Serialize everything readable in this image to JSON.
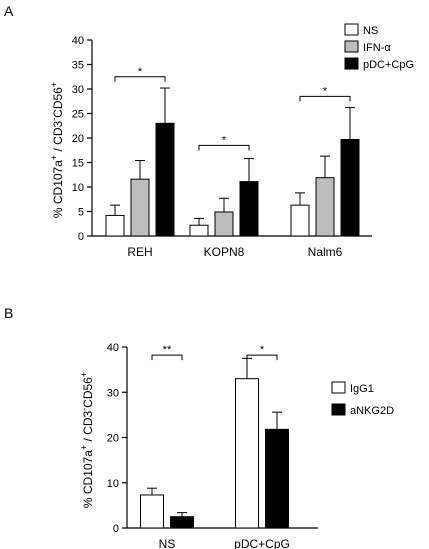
{
  "chart_data": [
    {
      "panel_label": "A",
      "type": "bar",
      "ylabel_main": "% CD107a",
      "ylabel_sup1": "+",
      "ylabel_mid": " / CD3",
      "ylabel_sup2": "-",
      "ylabel_end": "CD56",
      "ylabel_sup3": "+",
      "categories": [
        "REH",
        "KOPN8",
        "Nalm6"
      ],
      "ylim": [
        0,
        40
      ],
      "yticks": [
        0,
        5,
        10,
        15,
        20,
        25,
        30,
        35,
        40
      ],
      "legend_position": "top-right",
      "series": [
        {
          "name": "NS",
          "color": "#ffffff",
          "values": [
            4.2,
            2.2,
            6.3
          ],
          "errors": [
            2.1,
            1.4,
            2.5
          ]
        },
        {
          "name": "IFN-α",
          "color": "#bdbdbd",
          "values": [
            11.6,
            4.9,
            11.9
          ],
          "errors": [
            3.8,
            2.8,
            4.4
          ]
        },
        {
          "name": "pDC+CpG",
          "color": "#000000",
          "values": [
            23.0,
            11.1,
            19.7
          ],
          "errors": [
            7.2,
            4.7,
            6.5
          ]
        }
      ],
      "significance": [
        {
          "category": 0,
          "label": "*",
          "y": 32.5
        },
        {
          "category": 1,
          "label": "*",
          "y": 18.5
        },
        {
          "category": 2,
          "label": "*",
          "y": 28.5
        }
      ]
    },
    {
      "panel_label": "B",
      "type": "bar",
      "ylabel_main": "% CD107a",
      "ylabel_sup1": "+",
      "ylabel_mid": " / CD3",
      "ylabel_sup2": "-",
      "ylabel_end": "CD56",
      "ylabel_sup3": "+",
      "categories": [
        "NS",
        "pDC+CpG"
      ],
      "ylim": [
        0,
        40
      ],
      "yticks": [
        0,
        10,
        20,
        30,
        40
      ],
      "legend_position": "top-right",
      "series": [
        {
          "name": "IgG1",
          "color": "#ffffff",
          "values": [
            7.3,
            33.0
          ],
          "errors": [
            1.5,
            4.5
          ]
        },
        {
          "name": "aNKG2D",
          "color": "#000000",
          "values": [
            2.5,
            21.8
          ],
          "errors": [
            0.9,
            3.8
          ]
        }
      ],
      "significance": [
        {
          "category": 0,
          "label": "**",
          "y": 38.2
        },
        {
          "category": 1,
          "label": "*",
          "y": 38.2
        }
      ]
    }
  ]
}
